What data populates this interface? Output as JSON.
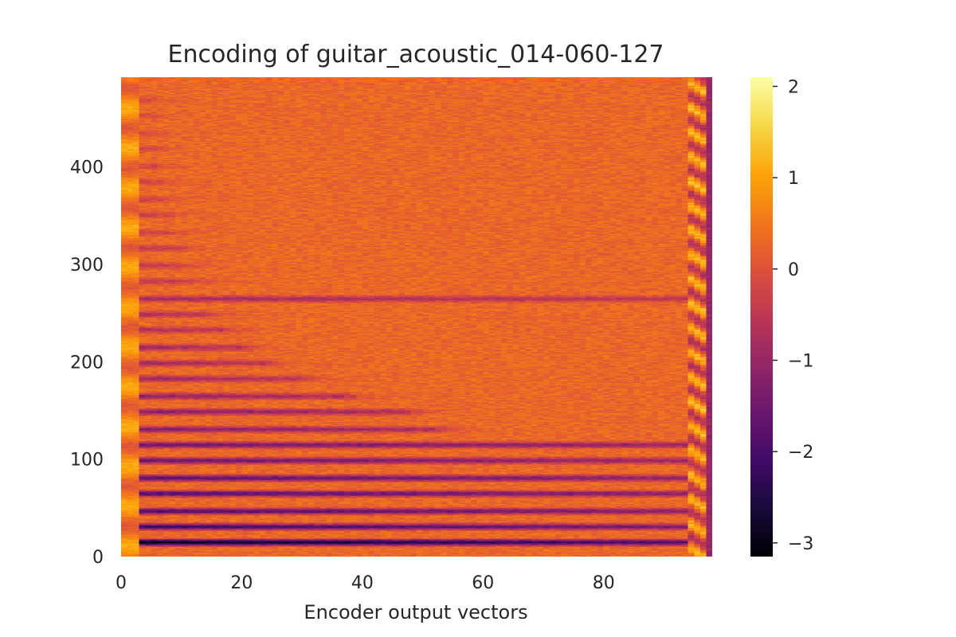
{
  "chart_data": {
    "type": "heatmap",
    "title": "Encoding of guitar_acoustic_014-060-127",
    "xlabel": "Encoder output vectors",
    "ylabel": "",
    "x_ticks": [
      0,
      20,
      40,
      60,
      80
    ],
    "y_ticks": [
      0,
      100,
      200,
      300,
      400
    ],
    "xlim": [
      0,
      98
    ],
    "ylim": [
      0,
      492
    ],
    "n_cols": 98,
    "n_rows": 492,
    "colormap": "inferno",
    "colorbar": {
      "ticks": [
        -3,
        -2,
        -1,
        0,
        1,
        2
      ],
      "tick_labels": [
        "−3",
        "−2",
        "−1",
        "0",
        "1",
        "2"
      ],
      "range": [
        -3.15,
        2.1
      ]
    },
    "grid": false,
    "background_value": 0.3,
    "dark_bands": [
      {
        "row": 14,
        "value": -3.0,
        "extent": 94
      },
      {
        "row": 30,
        "value": -2.2,
        "extent": 94
      },
      {
        "row": 46,
        "value": -2.0,
        "extent": 94
      },
      {
        "row": 64,
        "value": -1.9,
        "extent": 94
      },
      {
        "row": 80,
        "value": -1.8,
        "extent": 94
      },
      {
        "row": 98,
        "value": -1.6,
        "extent": 94
      },
      {
        "row": 114,
        "value": -1.6,
        "extent": 94
      },
      {
        "row": 130,
        "value": -1.3,
        "extent": 50
      },
      {
        "row": 148,
        "value": -1.3,
        "extent": 45
      },
      {
        "row": 164,
        "value": -1.2,
        "extent": 35
      },
      {
        "row": 182,
        "value": -1.0,
        "extent": 28
      },
      {
        "row": 198,
        "value": -1.0,
        "extent": 22
      },
      {
        "row": 214,
        "value": -1.0,
        "extent": 18
      },
      {
        "row": 232,
        "value": -0.8,
        "extent": 15
      },
      {
        "row": 248,
        "value": -0.8,
        "extent": 12
      },
      {
        "row": 264,
        "value": -0.9,
        "extent": 94
      },
      {
        "row": 282,
        "value": -0.6,
        "extent": 10
      },
      {
        "row": 298,
        "value": -0.6,
        "extent": 8
      },
      {
        "row": 316,
        "value": -0.6,
        "extent": 8
      },
      {
        "row": 332,
        "value": -0.5,
        "extent": 6
      },
      {
        "row": 350,
        "value": -0.5,
        "extent": 6
      },
      {
        "row": 366,
        "value": -0.5,
        "extent": 5
      },
      {
        "row": 384,
        "value": -0.4,
        "extent": 5
      },
      {
        "row": 400,
        "value": -0.4,
        "extent": 4
      },
      {
        "row": 418,
        "value": -0.4,
        "extent": 4
      },
      {
        "row": 434,
        "value": -0.3,
        "extent": 3
      },
      {
        "row": 452,
        "value": -0.3,
        "extent": 3
      },
      {
        "row": 468,
        "value": -0.3,
        "extent": 3
      }
    ]
  }
}
